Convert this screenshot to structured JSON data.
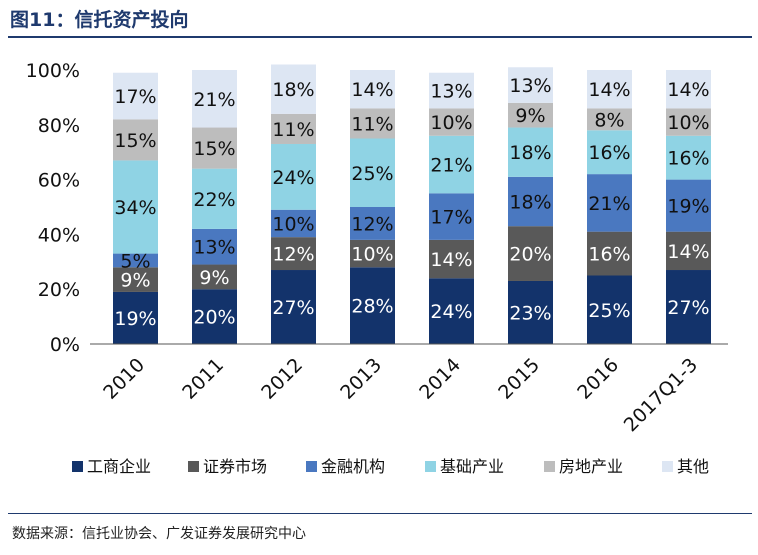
{
  "title": "图11：信托资产投向",
  "source": "数据来源：信托业协会、广发证券发展研究中心",
  "chart_data": {
    "type": "bar",
    "stacked": true,
    "normalized": true,
    "categories": [
      "2010",
      "2011",
      "2012",
      "2013",
      "2014",
      "2015",
      "2016",
      "2017Q1-3"
    ],
    "y_ticks": [
      "0%",
      "20%",
      "40%",
      "60%",
      "80%",
      "100%"
    ],
    "ylim": [
      0,
      100
    ],
    "legend_position": "bottom",
    "series": [
      {
        "name": "工商企业",
        "color": "#13336b",
        "label_color": "#ffffff",
        "values": [
          19,
          20,
          27,
          28,
          24,
          23,
          25,
          27
        ],
        "labels": [
          "19%",
          "20%",
          "27%",
          "28%",
          "24%",
          "23%",
          "25%",
          "27%"
        ]
      },
      {
        "name": "证券市场",
        "color": "#595959",
        "label_color": "#ffffff",
        "values": [
          9,
          9,
          12,
          10,
          14,
          20,
          16,
          14
        ],
        "labels": [
          "9%",
          "9%",
          "12%",
          "10%",
          "14%",
          "20%",
          "16%",
          "14%"
        ]
      },
      {
        "name": "金融机构",
        "color": "#4a78c0",
        "label_color": "#111111",
        "values": [
          5,
          13,
          10,
          12,
          17,
          18,
          21,
          19
        ],
        "labels": [
          "5%",
          "13%",
          "10%",
          "12%",
          "17%",
          "18%",
          "21%",
          "19%"
        ]
      },
      {
        "name": "基础产业",
        "color": "#8fd3e4",
        "label_color": "#111111",
        "values": [
          34,
          22,
          24,
          25,
          21,
          18,
          16,
          16
        ],
        "labels": [
          "34%",
          "22%",
          "24%",
          "25%",
          "21%",
          "18%",
          "16%",
          "16%"
        ]
      },
      {
        "name": "房地产业",
        "color": "#bdbdbd",
        "label_color": "#111111",
        "values": [
          15,
          15,
          11,
          11,
          10,
          9,
          8,
          10
        ],
        "labels": [
          "15%",
          "15%",
          "11%",
          "11%",
          "10%",
          "9%",
          "8%",
          "10%"
        ]
      },
      {
        "name": "其他",
        "color": "#dde6f3",
        "label_color": "#111111",
        "values": [
          17,
          21,
          18,
          14,
          13,
          13,
          14,
          14
        ],
        "labels": [
          "17%",
          "21%",
          "18%",
          "14%",
          "13%",
          "13%",
          "14%",
          "14%"
        ]
      }
    ]
  }
}
